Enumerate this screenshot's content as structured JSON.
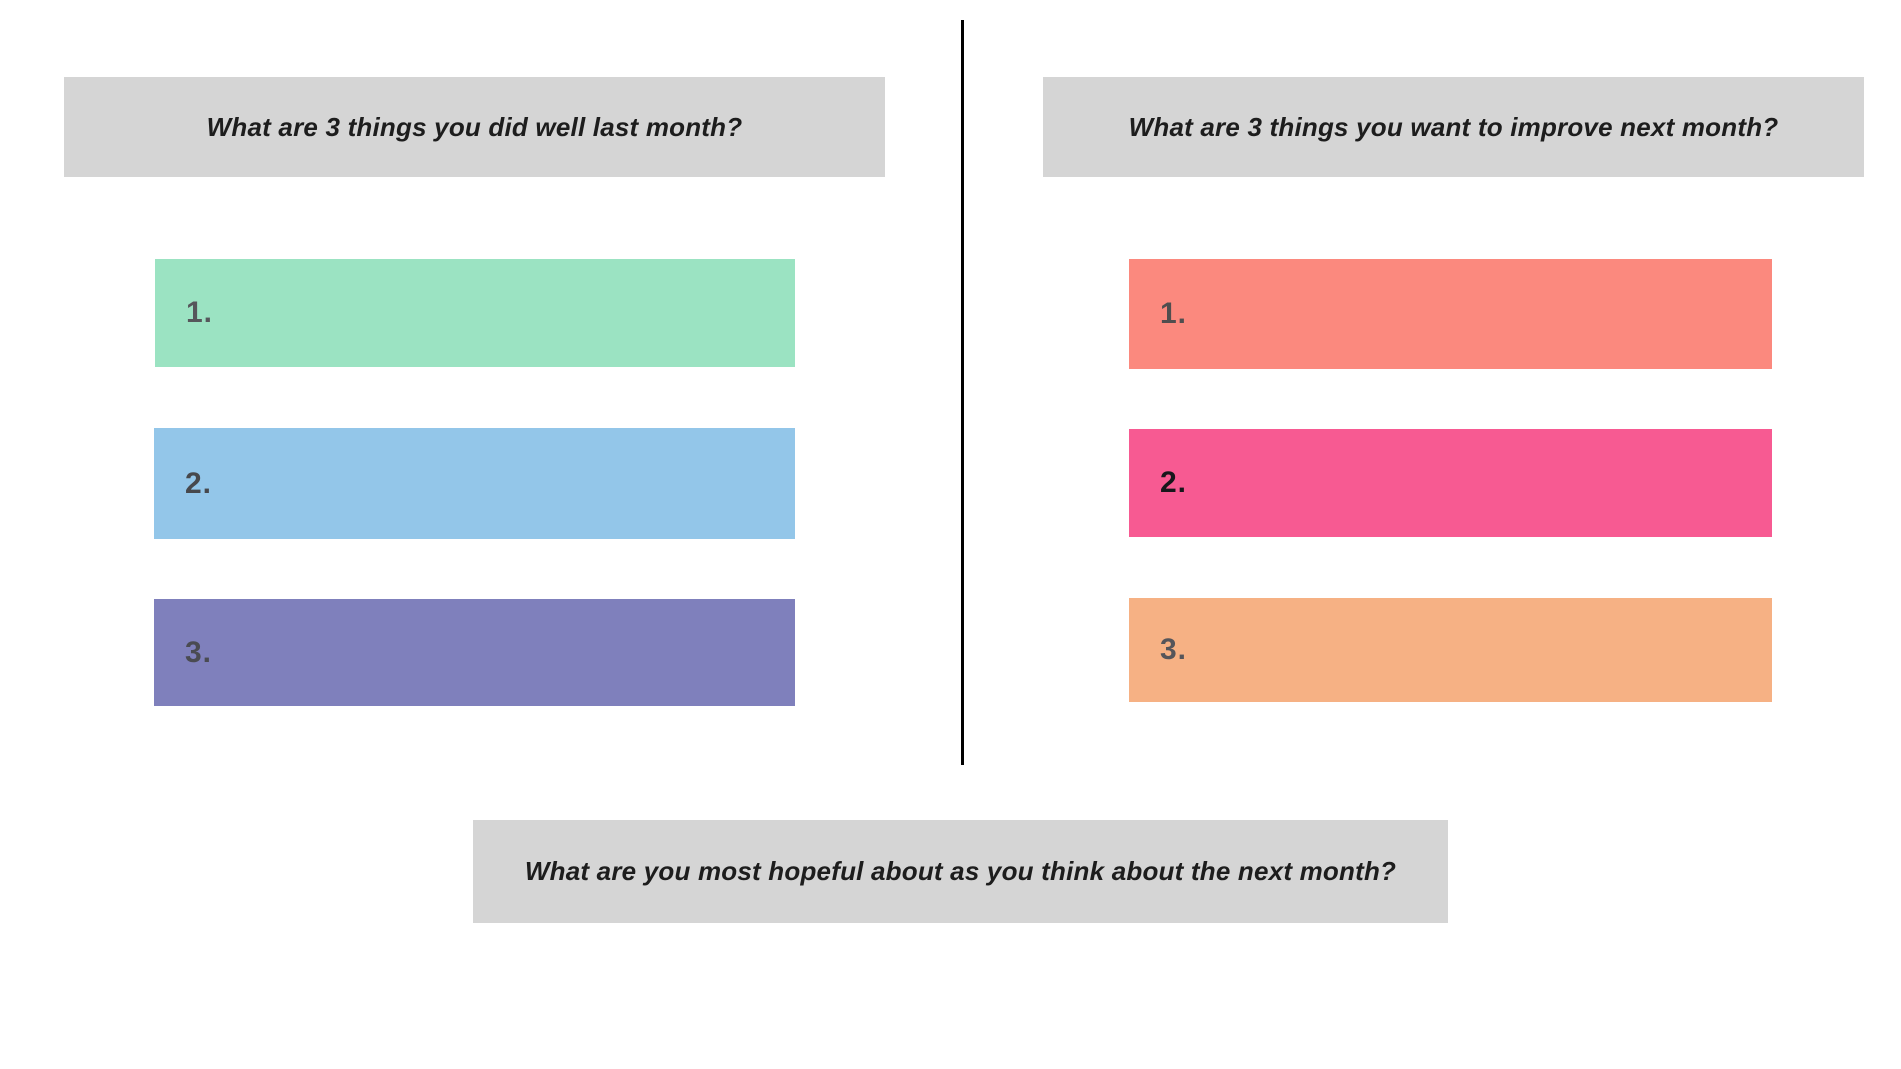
{
  "canvas": {
    "background": "#ffffff",
    "divider_color": "#000000",
    "header_bg": "#d5d5d5"
  },
  "left_panel": {
    "header": "What are 3 things you did well last month?",
    "items": [
      {
        "label": "1.",
        "color": "#9be3c2",
        "label_color": "#56575b"
      },
      {
        "label": "2.",
        "color": "#93c6e9",
        "label_color": "#47484c"
      },
      {
        "label": "3.",
        "color": "#7f80bc",
        "label_color": "#4a4b52"
      }
    ]
  },
  "right_panel": {
    "header": "What are 3 things you want to improve next month?",
    "items": [
      {
        "label": "1.",
        "color": "#fb897e",
        "label_color": "#504e4f"
      },
      {
        "label": "2.",
        "color": "#f75a92",
        "label_color": "#17171b"
      },
      {
        "label": "3.",
        "color": "#f6b184",
        "label_color": "#55555a"
      }
    ]
  },
  "bottom_prompt": "What are you most hopeful about as you think about the next month?"
}
